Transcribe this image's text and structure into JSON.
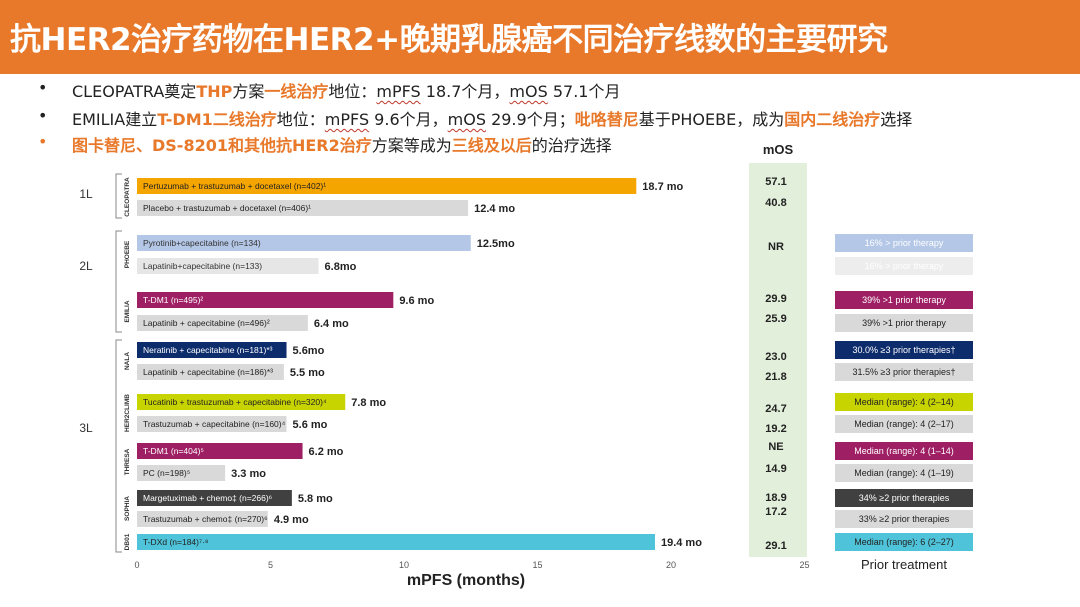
{
  "slide": {
    "title": "抗HER2治疗药物在HER2+晚期乳腺癌不同治疗线数的主要研究",
    "title_color": "#E8782A",
    "accent": "#E8782A",
    "bullets": [
      {
        "bullet": "•",
        "parts": [
          {
            "t": "CLEOPATRA奠定"
          },
          {
            "t": "THP",
            "hl": true
          },
          {
            "t": "方案"
          },
          {
            "t": "一线治疗",
            "hl": true
          },
          {
            "t": "地位："
          },
          {
            "t": "mPFS",
            "wavy": true
          },
          {
            "t": " 18.7个月，"
          },
          {
            "t": "mOS",
            "wavy": true
          },
          {
            "t": " 57.1个月"
          }
        ]
      },
      {
        "bullet": "•",
        "parts": [
          {
            "t": "EMILIA建立"
          },
          {
            "t": "T-DM1二线治疗",
            "hl": true
          },
          {
            "t": "地位："
          },
          {
            "t": "mPFS",
            "wavy": true
          },
          {
            "t": " 9.6个月，"
          },
          {
            "t": "mOS",
            "wavy": true
          },
          {
            "t": " 29.9个月；"
          },
          {
            "t": "吡咯替尼",
            "hl": true
          },
          {
            "t": "基于PHOEBE，成为"
          },
          {
            "t": "国内二线治疗",
            "hl": true
          },
          {
            "t": "选择"
          }
        ]
      },
      {
        "bullet": "•",
        "orange_bullet": true,
        "parts": [
          {
            "t": "图卡替尼、DS-8201和其他抗HER2治疗",
            "hl": true
          },
          {
            "t": "方案等成为"
          },
          {
            "t": "三线及以后",
            "hl": true
          },
          {
            "t": "的治疗选择"
          }
        ]
      }
    ]
  },
  "chart_data": {
    "type": "bar",
    "orientation": "horizontal",
    "xlabel": "mPFS (months)",
    "xlim": [
      0,
      25
    ],
    "xticks": [
      0,
      5,
      10,
      15,
      20,
      25
    ],
    "mos_header": "mOS",
    "prior_header": "Prior treatment",
    "lines": [
      {
        "label": "1L",
        "studies": [
          "CLEOPATRA"
        ]
      },
      {
        "label": "2L",
        "studies": [
          "PHOEBE",
          "EMILIA"
        ]
      },
      {
        "label": "3L",
        "studies": [
          "NALA",
          "HER2CLIMB",
          "THRESA",
          "SOPHIA",
          "DB01"
        ]
      }
    ],
    "studies": [
      {
        "name": "CLEOPATRA",
        "arms": [
          {
            "label": "Pertuzumab + trastuzumab + docetaxel (n=402)¹",
            "mpfs": 18.7,
            "value_label": "18.7 mo",
            "color": "#F5A500",
            "label_color": "#222222",
            "mos": "57.1",
            "prior": ""
          },
          {
            "label": "Placebo + trastuzumab + docetaxel (n=406)¹",
            "mpfs": 12.4,
            "value_label": "12.4 mo",
            "color": "#D9D9D9",
            "label_color": "#222222",
            "mos": "40.8",
            "prior": ""
          }
        ]
      },
      {
        "name": "PHOEBE",
        "arms": [
          {
            "label": "Pyrotinib+capecitabine (n=134)",
            "mpfs": 12.5,
            "value_label": "12.5mo",
            "color": "#B4C7E7",
            "label_color": "#333333",
            "mos": "NR",
            "prior": "16% > prior therapy",
            "prior_color": "#B4C7E7",
            "prior_text_color": "#ffffff"
          },
          {
            "label": "Lapatinib+capecitabine (n=133)",
            "mpfs": 6.8,
            "value_label": "6.8mo",
            "color": "#E7E6E6",
            "label_color": "#333333",
            "mos": "",
            "prior": "16% > prior therapy",
            "prior_color": "#EDEDED",
            "prior_text_color": "#ffffff"
          }
        ]
      },
      {
        "name": "EMILIA",
        "arms": [
          {
            "label": "T-DM1 (n=495)²",
            "mpfs": 9.6,
            "value_label": "9.6 mo",
            "color": "#9E1F63",
            "label_color": "#ffffff",
            "mos": "29.9",
            "prior": "39% >1 prior therapy",
            "prior_color": "#9E1F63",
            "prior_text_color": "#ffffff"
          },
          {
            "label": "Lapatinib + capecitabine (n=496)²",
            "mpfs": 6.4,
            "value_label": "6.4 mo",
            "color": "#D9D9D9",
            "label_color": "#222222",
            "mos": "25.9",
            "prior": "39% >1 prior therapy",
            "prior_color": "#D9D9D9",
            "prior_text_color": "#222222"
          }
        ]
      },
      {
        "name": "NALA",
        "arms": [
          {
            "label": "Neratinib + capecitabine (n=181)*³",
            "mpfs": 5.6,
            "value_label": "5.6mo",
            "color": "#0D2C6C",
            "label_color": "#ffffff",
            "mos": "23.0",
            "prior": "30.0% ≥3 prior therapies†",
            "prior_color": "#0D2C6C",
            "prior_text_color": "#ffffff"
          },
          {
            "label": "Lapatinib + capecitabine (n=186)*³",
            "mpfs": 5.5,
            "value_label": "5.5 mo",
            "color": "#D9D9D9",
            "label_color": "#222222",
            "mos": "21.8",
            "prior": "31.5% ≥3 prior therapies†",
            "prior_color": "#D9D9D9",
            "prior_text_color": "#222222"
          }
        ]
      },
      {
        "name": "HER2CLIMB",
        "arms": [
          {
            "label": "Tucatinib + trastuzumab + capecitabine (n=320)⁴",
            "mpfs": 7.8,
            "value_label": "7.8 mo",
            "color": "#C8D400",
            "label_color": "#222222",
            "mos": "24.7",
            "prior": "Median (range): 4 (2–14)",
            "prior_color": "#C8D400",
            "prior_text_color": "#222222"
          },
          {
            "label": "Trastuzumab + capecitabine (n=160)⁴",
            "mpfs": 5.6,
            "value_label": "5.6 mo",
            "color": "#D9D9D9",
            "label_color": "#222222",
            "mos": "19.2",
            "prior": "Median (range): 4 (2–17)",
            "prior_color": "#D9D9D9",
            "prior_text_color": "#222222"
          }
        ]
      },
      {
        "name": "THRESA",
        "arms": [
          {
            "label": "T-DM1 (n=404)⁵",
            "mpfs": 6.2,
            "value_label": "6.2 mo",
            "color": "#9E1F63",
            "label_color": "#ffffff",
            "mos": "NE",
            "prior": "Median (range): 4 (1–14)",
            "prior_color": "#9E1F63",
            "prior_text_color": "#ffffff"
          },
          {
            "label": "PC (n=198)⁵",
            "mpfs": 3.3,
            "value_label": "3.3 mo",
            "color": "#D9D9D9",
            "label_color": "#222222",
            "mos": "14.9",
            "prior": "Median (range): 4 (1–19)",
            "prior_color": "#D9D9D9",
            "prior_text_color": "#222222"
          }
        ]
      },
      {
        "name": "SOPHIA",
        "arms": [
          {
            "label": "Margetuximab + chemo‡ (n=266)⁶",
            "mpfs": 5.8,
            "value_label": "5.8 mo",
            "color": "#404040",
            "label_color": "#ffffff",
            "mos": "18.9",
            "prior": "34% ≥2 prior therapies",
            "prior_color": "#404040",
            "prior_text_color": "#ffffff"
          },
          {
            "label": "Trastuzumab + chemo‡ (n=270)⁶",
            "mpfs": 4.9,
            "value_label": "4.9 mo",
            "color": "#D9D9D9",
            "label_color": "#222222",
            "mos": "17.2",
            "prior": "33% ≥2 prior therapies",
            "prior_color": "#D9D9D9",
            "prior_text_color": "#222222"
          }
        ]
      },
      {
        "name": "DB01",
        "arms": [
          {
            "label": "T-DXd (n=184)⁷·⁸",
            "mpfs": 19.4,
            "value_label": "19.4 mo",
            "color": "#4FC3D9",
            "label_color": "#222222",
            "mos": "29.1",
            "prior": "Median (range): 6 (2–27)",
            "prior_color": "#4FC3D9",
            "prior_text_color": "#222222"
          }
        ]
      }
    ],
    "colors": {
      "mos_panel": "#E2EFDA",
      "axis": "#555555"
    }
  }
}
